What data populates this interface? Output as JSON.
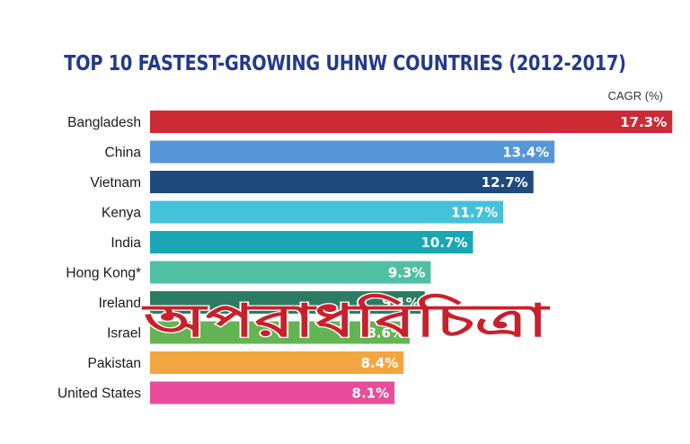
{
  "chart_data": {
    "type": "bar",
    "orientation": "horizontal",
    "title": "TOP 10 FASTEST-GROWING UHNW COUNTRIES (2012-2017)",
    "unit_label": "CAGR (%)",
    "categories": [
      "Bangladesh",
      "China",
      "Vietnam",
      "Kenya",
      "India",
      "Hong Kong*",
      "Ireland",
      "Israel",
      "Pakistan",
      "United States"
    ],
    "values": [
      17.3,
      13.4,
      12.7,
      11.7,
      10.7,
      9.3,
      9.1,
      8.6,
      8.4,
      8.1
    ],
    "value_labels": [
      "17.3%",
      "13.4%",
      "12.7%",
      "11.7%",
      "10.7%",
      "9.3%",
      "9.1%",
      "8.6%",
      "8.4%",
      "8.1%"
    ],
    "colors": [
      "#cc2a34",
      "#5596d6",
      "#1f4a7c",
      "#44c2da",
      "#1aa7b3",
      "#4fc0a3",
      "#2c7c63",
      "#62b552",
      "#f3a63f",
      "#e84c9a"
    ],
    "grid": false,
    "legend": "none"
  },
  "watermark": {
    "text": "অপরাধবিচিত্রা",
    "color": "#c8202c"
  }
}
